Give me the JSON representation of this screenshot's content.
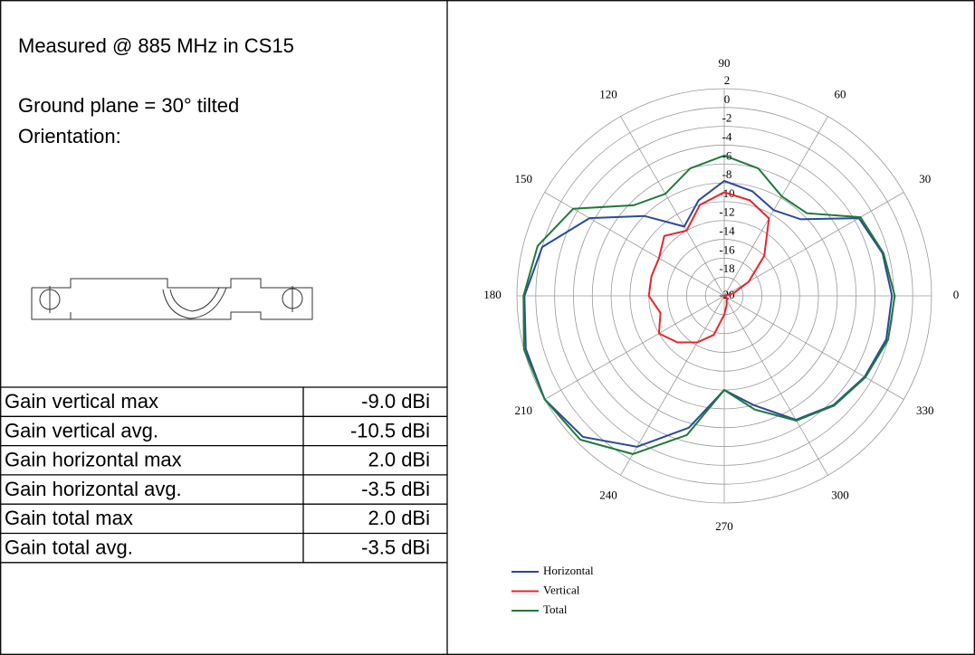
{
  "header": {
    "lines": [
      "Measured @ 885 MHz in CS15",
      "Ground plane = 30° tilted",
      "Orientation:"
    ]
  },
  "table": {
    "rows": [
      [
        "Gain vertical max",
        "-9.0 dBi"
      ],
      [
        "Gain vertical avg.",
        "-10.5 dBi"
      ],
      [
        "Gain horizontal max",
        "2.0 dBi"
      ],
      [
        "Gain horizontal avg.",
        "-3.5 dBi"
      ],
      [
        "Gain total max",
        "2.0 dBi"
      ],
      [
        "Gain total avg.",
        "-3.5 dBi"
      ]
    ]
  },
  "chart_data": {
    "type": "polar",
    "theta": [
      0,
      15,
      30,
      45,
      60,
      75,
      90,
      105,
      120,
      135,
      150,
      165,
      180,
      195,
      210,
      225,
      240,
      255,
      270,
      285,
      300,
      315,
      330,
      345
    ],
    "series": [
      {
        "name": "Horizontal",
        "color": "#2a4a9c",
        "values": [
          -2.2,
          -2.6,
          -3.5,
          -8.5,
          -9.5,
          -8.5,
          -7.8,
          -9.5,
          -11.5,
          -8,
          -3.5,
          0,
          1.2,
          1.8,
          2,
          1.2,
          -1.5,
          -5.5,
          -10,
          -8,
          -4.8,
          -3.6,
          -2.8,
          -2.2
        ]
      },
      {
        "name": "Vertical",
        "color": "#e8262b",
        "values": [
          -20,
          -19,
          -17,
          -14,
          -10.5,
          -9.5,
          -9,
          -10,
          -12,
          -11,
          -12,
          -12,
          -12,
          -13,
          -12,
          -13,
          -14.3,
          -15.7,
          -18,
          -19,
          -19.5,
          -19.5,
          -19.8,
          -20
        ]
      },
      {
        "name": "Total",
        "color": "#1e7a3a",
        "values": [
          -1.9,
          -2.5,
          -3.3,
          -7.6,
          -7.8,
          -6,
          -5.1,
          -6,
          -7.5,
          -6.4,
          -1.5,
          0.5,
          1.3,
          2,
          2,
          1.6,
          -0.6,
          -4.7,
          -10,
          -7.5,
          -4.7,
          -3.5,
          -2.7,
          -2
        ]
      }
    ],
    "rlim": [
      -20,
      2
    ],
    "rticks": [
      -20,
      -18,
      -16,
      -14,
      -12,
      -10,
      -8,
      -6,
      -4,
      -2,
      0,
      2
    ],
    "thetaticks": [
      0,
      30,
      60,
      90,
      120,
      150,
      180,
      210,
      240,
      270,
      300,
      330
    ],
    "grid": true
  }
}
